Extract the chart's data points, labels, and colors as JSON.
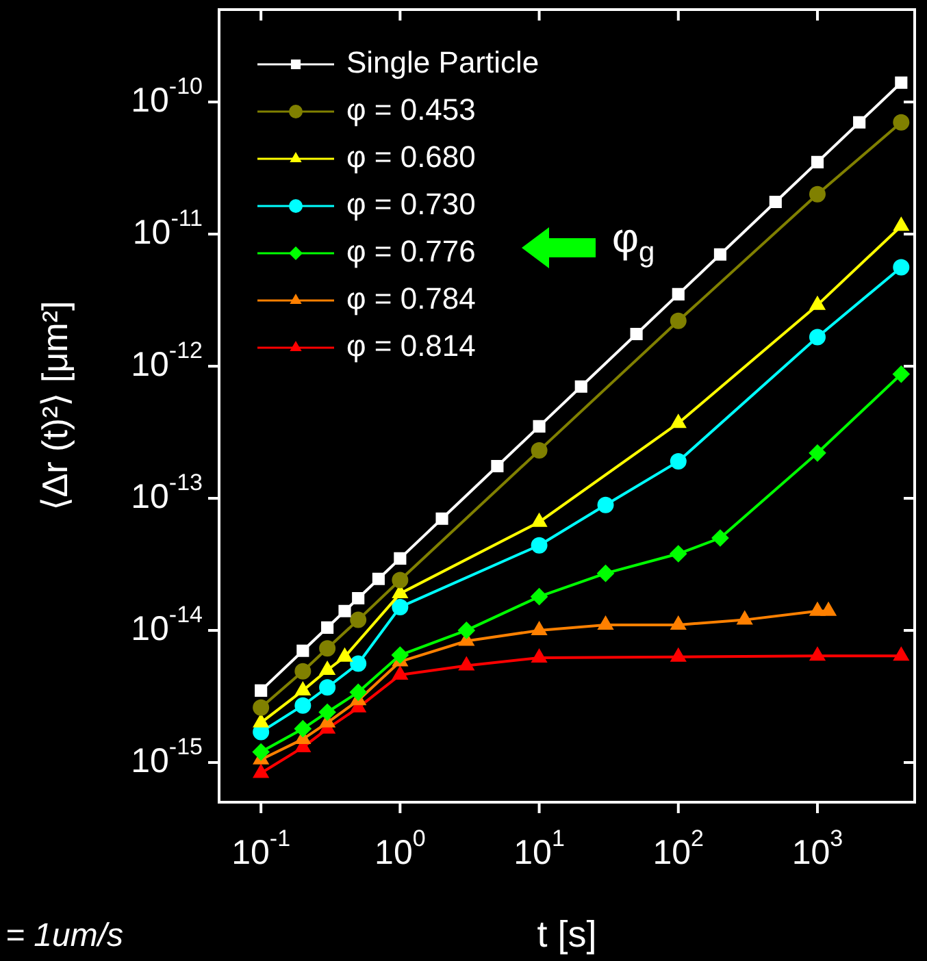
{
  "chart_data": {
    "type": "line",
    "xlabel": "t [s]",
    "ylabel": "⟨Δr (t)²⟩ [μm²]",
    "log": "xy",
    "grid": false,
    "legend": "top left",
    "xlim": [
      0.05,
      5000
    ],
    "ylim": [
      5e-16,
      5e-10
    ],
    "xticks": [
      {
        "value": 0.1,
        "label": "10$^{-1}$"
      },
      {
        "value": 1,
        "label": "10$^{0}$"
      },
      {
        "value": 10,
        "label": "10$^{1}$"
      },
      {
        "value": 100,
        "label": "10$^{2}$"
      },
      {
        "value": 1000,
        "label": "10$^{3}$"
      }
    ],
    "yticks": [
      {
        "value": 1e-15,
        "label": "10$^{-15}$"
      },
      {
        "value": 1e-14,
        "label": "10$^{-14}$"
      },
      {
        "value": 1e-13,
        "label": "10$^{-13}$"
      },
      {
        "value": 1e-12,
        "label": "10$^{-12}$"
      },
      {
        "value": 1e-11,
        "label": "10$^{-11}$"
      },
      {
        "value": 1e-10,
        "label": "10$^{-10}$"
      }
    ],
    "annotations": [
      "φ$_{g}$",
      "= 1um/s"
    ],
    "series": [
      {
        "name": "Single Particle",
        "color": "#ffffff",
        "marker": "square",
        "x": [
          0.1,
          0.2,
          0.3,
          0.4,
          0.5,
          0.7,
          1,
          2,
          5,
          10,
          20,
          50,
          100,
          200,
          500,
          1000,
          2000,
          4000
        ],
        "values": [
          3.5e-15,
          7e-15,
          1.05e-14,
          1.4e-14,
          1.75e-14,
          2.45e-14,
          3.5e-14,
          7e-14,
          1.75e-13,
          3.5e-13,
          7e-13,
          1.75e-12,
          3.5e-12,
          7e-12,
          1.75e-11,
          3.5e-11,
          7e-11,
          1.4e-10
        ]
      },
      {
        "name": "φ = 0.453",
        "color": "#808000",
        "marker": "circle",
        "x": [
          0.1,
          0.2,
          0.3,
          0.5,
          1,
          10,
          100,
          1000,
          4000
        ],
        "values": [
          2.6e-15,
          4.9e-15,
          7.3e-15,
          1.2e-14,
          2.4e-14,
          2.3e-13,
          2.2e-12,
          2e-11,
          7e-11
        ]
      },
      {
        "name": "φ = 0.680",
        "color": "#ffff00",
        "marker": "triangle",
        "x": [
          0.1,
          0.2,
          0.3,
          0.4,
          1,
          10,
          100,
          1000,
          4000
        ],
        "values": [
          2e-15,
          3.5e-15,
          5e-15,
          6.3e-15,
          1.9e-14,
          6.6e-14,
          3.7e-13,
          2.9e-12,
          1.15e-11
        ]
      },
      {
        "name": "φ = 0.730",
        "color": "#00ffff",
        "marker": "circle",
        "x": [
          0.1,
          0.2,
          0.3,
          0.5,
          1,
          10,
          30,
          100,
          1000,
          4000
        ],
        "values": [
          1.7e-15,
          2.7e-15,
          3.7e-15,
          5.6e-15,
          1.5e-14,
          4.4e-14,
          8.9e-14,
          1.9e-13,
          1.66e-12,
          5.6e-12
        ]
      },
      {
        "name": "φ = 0.776",
        "color": "#00ff00",
        "marker": "diamond",
        "x": [
          0.1,
          0.2,
          0.3,
          0.5,
          1,
          3,
          10,
          30,
          100,
          200,
          1000,
          4000
        ],
        "values": [
          1.2e-15,
          1.8e-15,
          2.4e-15,
          3.4e-15,
          6.5e-15,
          1e-14,
          1.8e-14,
          2.7e-14,
          3.8e-14,
          5e-14,
          2.2e-13,
          8.7e-13
        ]
      },
      {
        "name": "φ = 0.784",
        "color": "#ff8000",
        "marker": "triangle",
        "x": [
          0.1,
          0.2,
          0.3,
          0.5,
          1,
          3,
          10,
          30,
          100,
          300,
          1000,
          1200
        ],
        "values": [
          1.05e-15,
          1.5e-15,
          2e-15,
          2.95e-15,
          5.8e-15,
          8.3e-15,
          1e-14,
          1.1e-14,
          1.1e-14,
          1.2e-14,
          1.4e-14,
          1.4e-14
        ]
      },
      {
        "name": "φ = 0.814",
        "color": "#ff0000",
        "marker": "triangle",
        "x": [
          0.1,
          0.2,
          0.3,
          0.5,
          1,
          3,
          10,
          100,
          1000,
          4000
        ],
        "values": [
          8.3e-16,
          1.3e-15,
          1.8e-15,
          2.6e-15,
          4.6e-15,
          5.4e-15,
          6.2e-15,
          6.3e-15,
          6.4e-15,
          6.4e-15
        ]
      }
    ]
  }
}
